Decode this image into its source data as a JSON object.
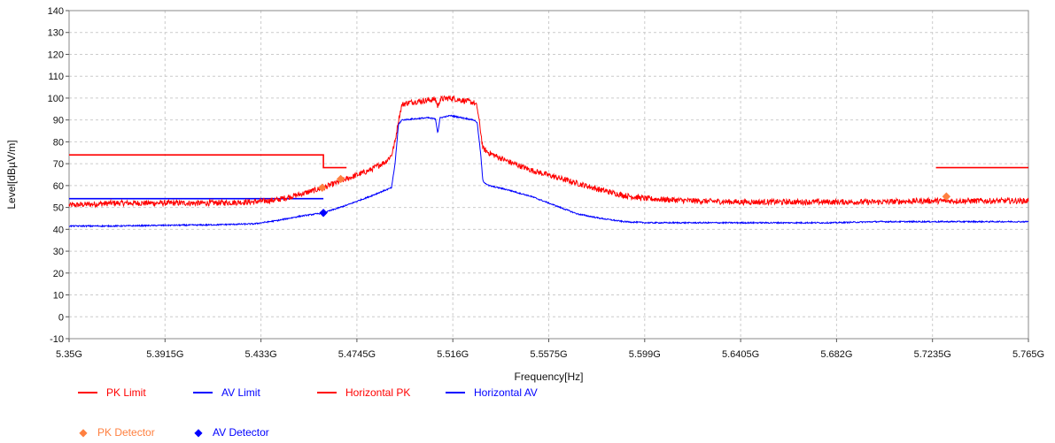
{
  "chart_data": {
    "type": "line",
    "xlabel": "Frequency[Hz]",
    "ylabel": "Level[dBµV/m]",
    "xlim": [
      5.35,
      5.765
    ],
    "ylim": [
      -10,
      140
    ],
    "x_ticks": [
      5.35,
      5.3915,
      5.433,
      5.4745,
      5.516,
      5.5575,
      5.599,
      5.6405,
      5.682,
      5.7235,
      5.765
    ],
    "x_tick_labels": [
      "5.35G",
      "5.3915G",
      "5.433G",
      "5.4745G",
      "5.516G",
      "5.5575G",
      "5.599G",
      "5.6405G",
      "5.682G",
      "5.7235G",
      "5.765G"
    ],
    "y_ticks": [
      -10,
      0,
      10,
      20,
      30,
      40,
      50,
      60,
      70,
      80,
      90,
      100,
      110,
      120,
      130,
      140
    ],
    "grid": true,
    "legend_position": "bottom-left",
    "series": [
      {
        "name": "PK Limit",
        "color": "#ff0000",
        "segments": [
          [
            [
              5.35,
              74
            ],
            [
              5.46,
              74
            ],
            [
              5.46,
              68.2
            ],
            [
              5.47,
              68.2
            ]
          ],
          [
            [
              5.725,
              68.2
            ],
            [
              5.765,
              68.2
            ]
          ]
        ]
      },
      {
        "name": "AV Limit",
        "color": "#0000ff",
        "segments": [
          [
            [
              5.35,
              54
            ],
            [
              5.46,
              54
            ]
          ]
        ]
      },
      {
        "name": "Horizontal PK",
        "color": "#ff0000",
        "noise": 1.3,
        "points": [
          [
            5.35,
            51
          ],
          [
            5.37,
            52
          ],
          [
            5.39,
            52
          ],
          [
            5.41,
            52
          ],
          [
            5.43,
            52.5
          ],
          [
            5.44,
            53.5
          ],
          [
            5.45,
            56
          ],
          [
            5.46,
            59
          ],
          [
            5.47,
            63
          ],
          [
            5.48,
            67
          ],
          [
            5.487,
            71
          ],
          [
            5.4895,
            74
          ],
          [
            5.491,
            80
          ],
          [
            5.4925,
            90
          ],
          [
            5.494,
            97
          ],
          [
            5.497,
            98
          ],
          [
            5.505,
            99
          ],
          [
            5.5085,
            99.5
          ],
          [
            5.5095,
            96
          ],
          [
            5.5105,
            99.5
          ],
          [
            5.515,
            100
          ],
          [
            5.52,
            99
          ],
          [
            5.525,
            98
          ],
          [
            5.5265,
            96
          ],
          [
            5.528,
            85
          ],
          [
            5.529,
            77
          ],
          [
            5.5315,
            75
          ],
          [
            5.54,
            71
          ],
          [
            5.55,
            67
          ],
          [
            5.56,
            64
          ],
          [
            5.57,
            61
          ],
          [
            5.58,
            58
          ],
          [
            5.59,
            55.5
          ],
          [
            5.6,
            54
          ],
          [
            5.62,
            53
          ],
          [
            5.64,
            52.5
          ],
          [
            5.66,
            52.5
          ],
          [
            5.68,
            52.5
          ],
          [
            5.7,
            52.5
          ],
          [
            5.72,
            53
          ],
          [
            5.74,
            53
          ],
          [
            5.765,
            53
          ]
        ]
      },
      {
        "name": "Horizontal AV",
        "color": "#0000ff",
        "noise": 0.3,
        "points": [
          [
            5.35,
            41.5
          ],
          [
            5.37,
            41.5
          ],
          [
            5.39,
            41.8
          ],
          [
            5.41,
            42
          ],
          [
            5.43,
            42.5
          ],
          [
            5.44,
            44
          ],
          [
            5.45,
            46
          ],
          [
            5.46,
            47.5
          ],
          [
            5.47,
            51
          ],
          [
            5.48,
            55
          ],
          [
            5.487,
            58
          ],
          [
            5.4895,
            59
          ],
          [
            5.491,
            70
          ],
          [
            5.4925,
            88
          ],
          [
            5.494,
            90
          ],
          [
            5.505,
            91
          ],
          [
            5.5085,
            90.5
          ],
          [
            5.5095,
            84
          ],
          [
            5.5105,
            91
          ],
          [
            5.515,
            92
          ],
          [
            5.52,
            91
          ],
          [
            5.525,
            90
          ],
          [
            5.5265,
            89
          ],
          [
            5.528,
            75
          ],
          [
            5.529,
            62
          ],
          [
            5.5315,
            60
          ],
          [
            5.54,
            58
          ],
          [
            5.55,
            55
          ],
          [
            5.56,
            51
          ],
          [
            5.57,
            47
          ],
          [
            5.58,
            45
          ],
          [
            5.59,
            43.5
          ],
          [
            5.6,
            43
          ],
          [
            5.62,
            43
          ],
          [
            5.64,
            43
          ],
          [
            5.66,
            43
          ],
          [
            5.68,
            43
          ],
          [
            5.7,
            43.5
          ],
          [
            5.72,
            43.5
          ],
          [
            5.74,
            43.5
          ],
          [
            5.765,
            43.5
          ]
        ]
      },
      {
        "name": "PK Detector",
        "color": "#ff8040",
        "marker": "diamond",
        "points": [
          [
            5.4595,
            59
          ],
          [
            5.4675,
            63
          ],
          [
            5.7295,
            55
          ]
        ]
      },
      {
        "name": "AV Detector",
        "color": "#0000ff",
        "marker": "diamond",
        "points": [
          [
            5.46,
            47.5
          ]
        ]
      }
    ],
    "legend": [
      {
        "label": "PK Limit",
        "color": "#ff0000",
        "kind": "line"
      },
      {
        "label": "AV Limit",
        "color": "#0000ff",
        "kind": "line"
      },
      {
        "label": "Horizontal PK",
        "color": "#ff0000",
        "kind": "line"
      },
      {
        "label": "Horizontal AV",
        "color": "#0000ff",
        "kind": "line"
      },
      {
        "label": "PK Detector",
        "color": "#ff8040",
        "kind": "marker",
        "glyph": "◆"
      },
      {
        "label": "AV Detector",
        "color": "#0000ff",
        "kind": "marker",
        "glyph": "◆"
      }
    ]
  }
}
